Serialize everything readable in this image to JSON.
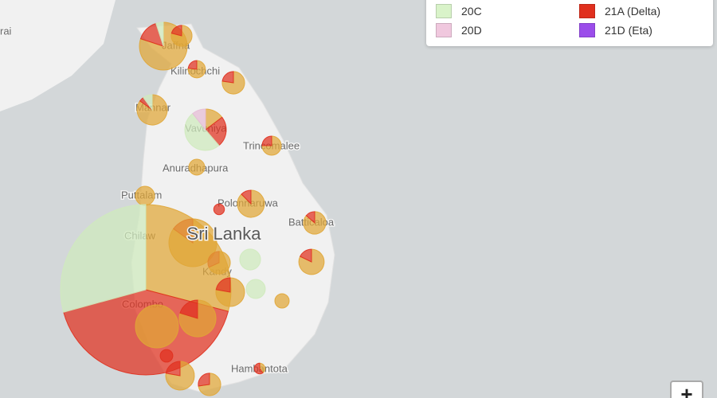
{
  "legend": {
    "items": [
      {
        "label": "20C",
        "color": "#d9f3c9"
      },
      {
        "label": "21A (Delta)",
        "color": "#e0301e"
      },
      {
        "label": "20D",
        "color": "#f0c8de"
      },
      {
        "label": "21D (Eta)",
        "color": "#9b4dea"
      }
    ]
  },
  "zoom_button": "+",
  "country_label": "Sri Lanka",
  "places": [
    "rai",
    "Jaffna",
    "Kilinochchi",
    "Mannar",
    "Vavuniya",
    "Trincomalee",
    "Anuradhapura",
    "Puttalam",
    "Polonnaruwa",
    "Batticaloa",
    "Chilaw",
    "Kandy",
    "Colombo",
    "Hambantota"
  ],
  "pie_colors": [
    "#e0a636",
    "#e0301e",
    "#cfeabd",
    "#e6bcd6"
  ],
  "pies": [
    {
      "values": [
        80,
        15,
        5,
        0
      ]
    },
    {
      "values": [
        15,
        4,
        0,
        0
      ]
    },
    {
      "values": [
        10,
        3,
        0,
        0
      ]
    },
    {
      "values": [
        17,
        5,
        0,
        0
      ]
    },
    {
      "values": [
        34,
        2,
        4,
        0
      ]
    },
    {
      "values": [
        11,
        18,
        38,
        8
      ]
    },
    {
      "values": [
        12,
        4,
        0,
        0
      ]
    },
    {
      "values": [
        11,
        0,
        0,
        0
      ]
    },
    {
      "values": [
        16,
        0,
        0,
        0
      ]
    },
    {
      "values": [
        28,
        4,
        0,
        0
      ]
    },
    {
      "values": [
        0,
        5,
        0,
        0
      ]
    },
    {
      "values": [
        19,
        3,
        0,
        0
      ]
    },
    {
      "values": [
        85,
        15,
        0,
        0
      ]
    },
    {
      "values": [
        23,
        5,
        0,
        0
      ]
    },
    {
      "values": [
        0,
        0,
        19,
        0
      ]
    },
    {
      "values": [
        15,
        7,
        0,
        0
      ]
    },
    {
      "values": [
        370,
        530,
        372,
        0
      ]
    },
    {
      "values": [
        28,
        8,
        0,
        0
      ]
    },
    {
      "values": [
        0,
        0,
        16,
        0
      ]
    },
    {
      "values": [
        9,
        0,
        0,
        0
      ]
    },
    {
      "values": [
        47,
        12,
        0,
        0
      ]
    },
    {
      "values": [
        81,
        0,
        0,
        0
      ]
    },
    {
      "values": [
        28,
        8,
        0,
        0
      ]
    },
    {
      "values": [
        16,
        6,
        0,
        0
      ]
    },
    {
      "values": [
        2,
        3,
        0,
        0
      ]
    },
    {
      "values": [
        0,
        7,
        0,
        0
      ]
    }
  ]
}
